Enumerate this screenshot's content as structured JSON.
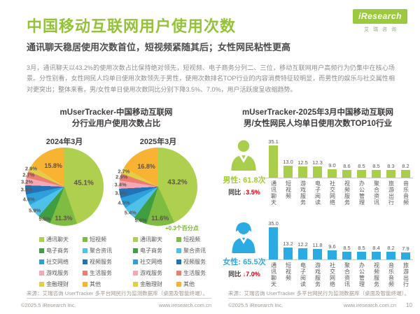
{
  "header": {
    "title": "中国移动互联网用户使用次数",
    "subtitle": "通讯聊天稳居使用次数首位，短视频紧随其后；女性网民粘性更高",
    "body": "3月，通讯聊天以43.2%的使用次数占比保持绝对领先，短视频、电子商务分列二、三位，移动互联网用户高频行为仍集中在核心场景。分性别看，女性网民人均单日使用次数领先于男性，使用次数排名TOP行业的内容消费特征较明显，而男性的娱乐与社交属性相对更突出；整体来看，男/女性单日使用次数同比分别下降3.5%、7.0%，用户活跃度呈收缩趋势。",
    "logo_brand": "iResearch",
    "logo_cn": "艾瑞咨询"
  },
  "left_panel": {
    "title_line1": "mUserTracker-中国移动互联网",
    "title_line2": "分行业用户使用次数占比",
    "annotation": "+0.3个百分点",
    "source": "来源：艾瑞咨询 UserTracker 多平台网民行为监测数据库（桌面及智能终端）。",
    "copyright": "©2025.5 iResearch Inc.",
    "website": "www.iresearch.com.cn"
  },
  "right_panel": {
    "title_line1": "mUserTracker-2025年3月中国移动互联网",
    "title_line2": "男/女性网民人均单日使用次数TOP10行业",
    "male": {
      "group_label": "男性:",
      "avg_value": "61.8次",
      "yoy_label": "同比",
      "yoy_value": "↓3.5%"
    },
    "female": {
      "group_label": "女性:",
      "avg_value": "65.5次",
      "yoy_label": "同比",
      "yoy_value": "↓7.0%"
    },
    "source": "来源：艾瑞咨询 UserTracker 多平台网民行为监测数据库（桌面及智能终端）。",
    "copyright": "©2025.5 iResearch Inc.",
    "website": "www.iresearch.com.cn",
    "page_number": "10"
  },
  "colors": {
    "accent_green": "#94c338",
    "male_green": "#a8ce4b",
    "female_blue": "#2cabe2",
    "pie_label": "#60524b",
    "yoy_arrow_red": "#d7000f"
  },
  "legend": {
    "items": [
      {
        "label": "通讯聊天",
        "color": "#afd04f"
      },
      {
        "label": "短视频",
        "color": "#7fbc42"
      },
      {
        "label": "电子商务",
        "color": "#3f9e3f"
      },
      {
        "label": "聚合资讯",
        "color": "#4ec1ea"
      },
      {
        "label": "社交网络",
        "color": "#2d9fd9"
      },
      {
        "label": "视频服务",
        "color": "#2272b8"
      },
      {
        "label": "游戏服务",
        "color": "#f4a7b4"
      },
      {
        "label": "生活服务",
        "color": "#ec7d70"
      },
      {
        "label": "金融理财",
        "color": "#e2ce47"
      },
      {
        "label": "其他",
        "color": "#f7b331"
      }
    ]
  },
  "chart_data": [
    {
      "type": "pie",
      "title": "2024年3月",
      "labels": [
        "通讯聊天",
        "短视频",
        "电子商务",
        "聚合资讯",
        "社交网络",
        "视频服务",
        "游戏服务",
        "生活服务",
        "金融理财",
        "其他"
      ],
      "values": [
        45.1,
        11.3,
        5.5,
        5.9,
        4.6,
        3.8,
        3.2,
        2.7,
        2.9,
        15.8
      ],
      "colors": [
        "#afd04f",
        "#7fbc42",
        "#3f9e3f",
        "#4ec1ea",
        "#2d9fd9",
        "#2272b8",
        "#f4a7b4",
        "#ec7d70",
        "#e2ce47",
        "#f7b331"
      ],
      "legend_position": "bottom"
    },
    {
      "type": "pie",
      "title": "2025年3月",
      "labels": [
        "通讯聊天",
        "短视频",
        "电子商务",
        "聚合资讯",
        "社交网络",
        "视频服务",
        "游戏服务",
        "生活服务",
        "金融理财",
        "其他"
      ],
      "values": [
        43.2,
        11.6,
        5.6,
        5.4,
        4.5,
        3.8,
        3.4,
        2.9,
        2.7,
        16.8
      ],
      "colors": [
        "#afd04f",
        "#7fbc42",
        "#3f9e3f",
        "#4ec1ea",
        "#2d9fd9",
        "#2272b8",
        "#f4a7b4",
        "#ec7d70",
        "#e2ce47",
        "#f7b331"
      ],
      "annotation": "+0.3个百分点",
      "legend_position": "bottom"
    },
    {
      "type": "bar",
      "title": "男性人均单日使用次数TOP10行业",
      "categories": [
        "通讯聊天",
        "短视频",
        "游戏服务",
        "电子阅读",
        "社交网络",
        "视频服务",
        "办公管理",
        "聚合资讯",
        "旅游出行",
        "音乐音频"
      ],
      "values": [
        35.1,
        13.0,
        12.5,
        12.3,
        9.0,
        8.6,
        8.5,
        8.5,
        8.3,
        8.2
      ],
      "bar_color": "#a8ce4b",
      "ylabel": "次",
      "ylim": [
        0,
        36
      ],
      "summary": "男性: 61.8次，同比 ↓3.5%"
    },
    {
      "type": "bar",
      "title": "女性人均单日使用次数TOP10行业",
      "categories": [
        "通讯聊天",
        "短视频",
        "电子阅读",
        "游戏服务",
        "社交网络",
        "聚合资讯",
        "办公管理",
        "视频服务",
        "音乐音频",
        "旅游出行"
      ],
      "values": [
        35.0,
        13.2,
        12.2,
        11.8,
        9.6,
        8.5,
        8.5,
        8.4,
        8.2,
        7.9
      ],
      "bar_color": "#2cabe2",
      "ylabel": "次",
      "ylim": [
        0,
        36
      ],
      "summary": "女性: 65.5次，同比 ↓7.0%"
    }
  ]
}
